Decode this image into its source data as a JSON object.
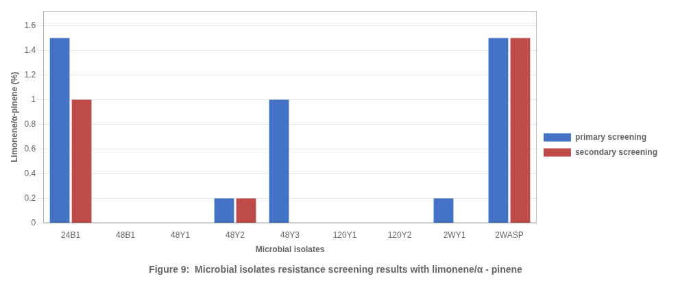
{
  "chart_data": {
    "type": "bar",
    "title": "Figure 9:  Microbial isolates resistance screening results with limonene/α - pinene",
    "xlabel": "Microbial isolates",
    "ylabel": "Limonene/α-pinene (%)",
    "categories": [
      "24B1",
      "48B1",
      "48Y1",
      "48Y2",
      "48Y3",
      "120Y1",
      "120Y2",
      "2WY1",
      "2WASP"
    ],
    "series": [
      {
        "name": "primary\nscreening",
        "color": "#4472C4",
        "values": [
          1.5,
          0,
          0,
          0.2,
          1.0,
          0,
          0,
          0.2,
          1.5
        ]
      },
      {
        "name": "secondary\nscreening",
        "color": "#BE4B48",
        "values": [
          1.0,
          0,
          0,
          0.2,
          0,
          0,
          0,
          0,
          1.5
        ]
      }
    ],
    "ylim": [
      0,
      1.72
    ],
    "yticks": [
      0,
      0.2,
      0.4,
      0.6,
      0.8,
      1.0,
      1.2,
      1.4,
      1.6
    ],
    "grid": true,
    "legend": "right"
  }
}
